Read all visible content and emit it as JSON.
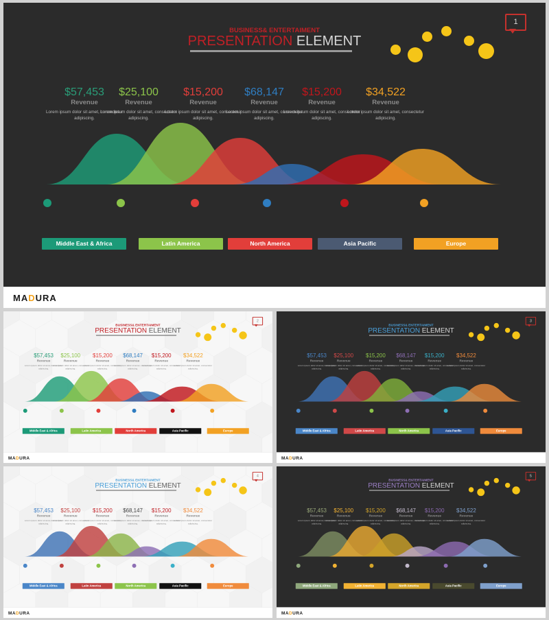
{
  "deck": {
    "supertitle": "BUSINESS& ENTERTAIMENT",
    "title_accent": "PRESENTATION",
    "title_rest": "ELEMENT",
    "logo_main": "MA",
    "logo_accent": "D",
    "logo_tail": "URA",
    "revenue_label": "Revenue",
    "lorem": "Lorem ipsum dolor sit amet, consectetur adipiscing."
  },
  "slides": [
    {
      "id": "big",
      "theme": "dark",
      "slide_number": "1",
      "title_color": "#c02026",
      "bubble_color": "#f5c518",
      "stats": [
        {
          "value": "$57,453",
          "color": "#2a9d78"
        },
        {
          "value": "$25,100",
          "color": "#8cc44a"
        },
        {
          "value": "$15,200",
          "color": "#e23e3a"
        },
        {
          "value": "$68,147",
          "color": "#2f7dc1"
        },
        {
          "value": "$15,200",
          "color": "#c0161c"
        },
        {
          "value": "$34,522",
          "color": "#f2a123"
        }
      ],
      "regions": [
        {
          "label": "Middle East & Africa",
          "color": "#1c9a78"
        },
        {
          "label": "Latin America",
          "color": "#8cc44a"
        },
        {
          "label": "North America",
          "color": "#e23e3a"
        },
        {
          "label": "Asia Pacific",
          "color": "#4b5a72"
        },
        {
          "label": "Europe",
          "color": "#f2a123"
        }
      ],
      "dot_colors": [
        "#1c9a78",
        "#8cc44a",
        "#e23e3a",
        "#2f7dc1",
        "#c0161c",
        "#f2a123"
      ],
      "mountain_colors": [
        "#1e9c78",
        "#8cc44a",
        "#e23e3a",
        "#2f6fb3",
        "#c0161c",
        "#f2a123"
      ]
    },
    {
      "id": "s1",
      "theme": "light",
      "slide_number": "2",
      "title_color": "#c02026",
      "bubble_color": "#f5c518",
      "stats": [
        {
          "value": "$57,453",
          "color": "#2a9d78"
        },
        {
          "value": "$25,100",
          "color": "#8cc44a"
        },
        {
          "value": "$15,200",
          "color": "#e23e3a"
        },
        {
          "value": "$68,147",
          "color": "#2f7dc1"
        },
        {
          "value": "$15,200",
          "color": "#c0161c"
        },
        {
          "value": "$34,522",
          "color": "#f2a123"
        }
      ],
      "regions": [
        {
          "label": "Middle East & Africa",
          "color": "#1c9a78"
        },
        {
          "label": "Latin America",
          "color": "#8cc44a"
        },
        {
          "label": "North America",
          "color": "#e23e3a"
        },
        {
          "label": "Asia Pacific",
          "color": "#111111"
        },
        {
          "label": "Europe",
          "color": "#f2a123"
        }
      ],
      "dot_colors": [
        "#1c9a78",
        "#8cc44a",
        "#e23e3a",
        "#2f7dc1",
        "#c0161c",
        "#f2a123"
      ],
      "mountain_colors": [
        "#1e9c78",
        "#8cc44a",
        "#e23e3a",
        "#2f6fb3",
        "#c0161c",
        "#f2a123"
      ]
    },
    {
      "id": "s2",
      "theme": "dark",
      "slide_number": "3",
      "title_color": "#4a9fd8",
      "bubble_color": "#f5c518",
      "stats": [
        {
          "value": "$57,453",
          "color": "#4a86c8"
        },
        {
          "value": "$25,100",
          "color": "#d04848"
        },
        {
          "value": "$15,200",
          "color": "#8cc44a"
        },
        {
          "value": "$68,147",
          "color": "#8e6fb5"
        },
        {
          "value": "$15,200",
          "color": "#3ab0c8"
        },
        {
          "value": "$34,522",
          "color": "#f08b3c"
        }
      ],
      "regions": [
        {
          "label": "Middle East & Africa",
          "color": "#4a86c8"
        },
        {
          "label": "Latin America",
          "color": "#d04848"
        },
        {
          "label": "North America",
          "color": "#8cc44a"
        },
        {
          "label": "Asia Pacific",
          "color": "#2e5594"
        },
        {
          "label": "Europe",
          "color": "#f08b3c"
        }
      ],
      "dot_colors": [
        "#4a86c8",
        "#d04848",
        "#8cc44a",
        "#8e6fb5",
        "#3ab0c8",
        "#f08b3c"
      ],
      "mountain_colors": [
        "#3f73b5",
        "#c0413f",
        "#7fae3a",
        "#8e6fb5",
        "#35a0b8",
        "#e88a3c"
      ]
    },
    {
      "id": "s3",
      "theme": "light",
      "slide_number": "4",
      "title_color": "#4a9fd8",
      "bubble_color": "#f5c518",
      "stats": [
        {
          "value": "$57,453",
          "color": "#4a86c8"
        },
        {
          "value": "$25,100",
          "color": "#c0413f"
        },
        {
          "value": "$15,200",
          "color": "#c02026"
        },
        {
          "value": "$68,147",
          "color": "#444444"
        },
        {
          "value": "$15,200",
          "color": "#c02026"
        },
        {
          "value": "$34,522",
          "color": "#f08b3c"
        }
      ],
      "regions": [
        {
          "label": "Middle East & Africa",
          "color": "#4a86c8"
        },
        {
          "label": "Latin America",
          "color": "#c0413f"
        },
        {
          "label": "North America",
          "color": "#8cc44a"
        },
        {
          "label": "Asia Pacific",
          "color": "#111111"
        },
        {
          "label": "Europe",
          "color": "#f08b3c"
        }
      ],
      "dot_colors": [
        "#4a86c8",
        "#c0413f",
        "#8cc44a",
        "#8e6fb5",
        "#3ab0c8",
        "#f08b3c"
      ],
      "mountain_colors": [
        "#3f73b5",
        "#c0413f",
        "#8cb54a",
        "#8e6fb5",
        "#35a0b8",
        "#f08b3c"
      ]
    },
    {
      "id": "s4",
      "theme": "dark",
      "slide_number": "5",
      "title_color": "#9b7fc4",
      "bubble_color": "#f5c518",
      "stats": [
        {
          "value": "$57,453",
          "color": "#9aa97a"
        },
        {
          "value": "$25,100",
          "color": "#f2b233"
        },
        {
          "value": "$15,200",
          "color": "#d4a52a"
        },
        {
          "value": "$68,147",
          "color": "#c2b9cc"
        },
        {
          "value": "$15,200",
          "color": "#8c6ab0"
        },
        {
          "value": "$34,522",
          "color": "#7fa0cc"
        }
      ],
      "regions": [
        {
          "label": "Middle East & Africa",
          "color": "#8fa87c"
        },
        {
          "label": "Latin America",
          "color": "#f2b233"
        },
        {
          "label": "North America",
          "color": "#d4a52a"
        },
        {
          "label": "Asia Pacific",
          "color": "#4a4a2e"
        },
        {
          "label": "Europe",
          "color": "#7fa0cc"
        }
      ],
      "dot_colors": [
        "#8fa87c",
        "#f2b233",
        "#d4a52a",
        "#c2b9cc",
        "#8c6ab0",
        "#7fa0cc"
      ],
      "mountain_colors": [
        "#7d8c62",
        "#e8a832",
        "#c9a02a",
        "#b9a6c8",
        "#8c6ab0",
        "#7fa0cc"
      ]
    }
  ]
}
